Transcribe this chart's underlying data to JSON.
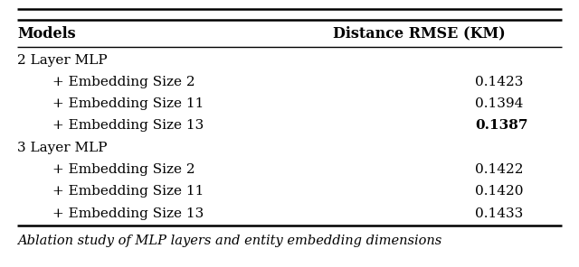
{
  "header": [
    "Models",
    "Distance RMSE (KM)"
  ],
  "rows": [
    {
      "label": "2 Layer MLP",
      "value": null,
      "indent": false,
      "bold_val": false
    },
    {
      "label": "+ Embedding Size 2",
      "value": "0.1423",
      "indent": true,
      "bold_val": false
    },
    {
      "label": "+ Embedding Size 11",
      "value": "0.1394",
      "indent": true,
      "bold_val": false
    },
    {
      "label": "+ Embedding Size 13",
      "value": "0.1387",
      "indent": true,
      "bold_val": true
    },
    {
      "label": "3 Layer MLP",
      "value": null,
      "indent": false,
      "bold_val": false
    },
    {
      "label": "+ Embedding Size 2",
      "value": "0.1422",
      "indent": true,
      "bold_val": false
    },
    {
      "label": "+ Embedding Size 11",
      "value": "0.1420",
      "indent": true,
      "bold_val": false
    },
    {
      "label": "+ Embedding Size 13",
      "value": "0.1433",
      "indent": true,
      "bold_val": false
    }
  ],
  "caption": "Ablation study of MLP layers and entity embedding dimensions",
  "font_size": 11.0,
  "header_font_size": 11.5,
  "caption_font_size": 10.5
}
